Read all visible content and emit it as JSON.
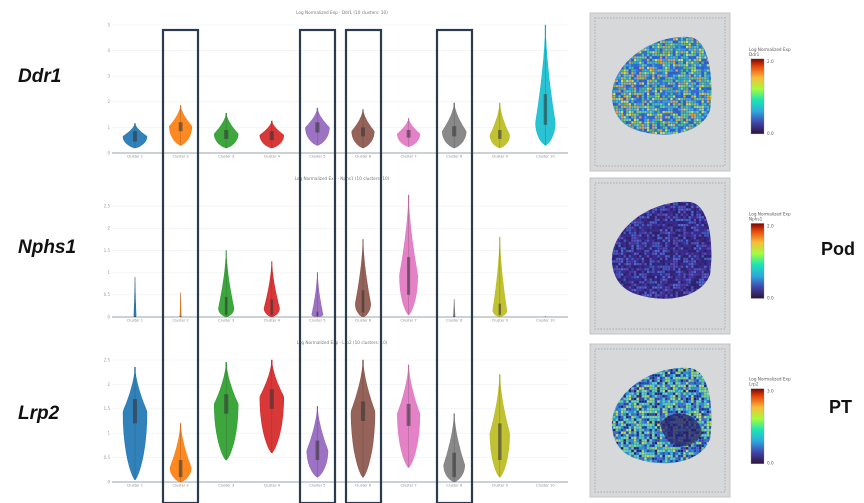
{
  "rows": [
    {
      "gene": "Ddr1",
      "cell_type": "",
      "panel_title": "Log Normalized Exp · Ddr1 (10 clusters: 10)",
      "legend_title": "Log Normalized Exp\nDdr1",
      "legend_max": "2.0",
      "legend_min": "0.0"
    },
    {
      "gene": "Nphs1",
      "cell_type": "Pod",
      "panel_title": "Log Normalized Exp · Nphs1 (10 clusters: 10)",
      "legend_title": "Log Normalized Exp\nNphs1",
      "legend_max": "2.0",
      "legend_min": "0.0"
    },
    {
      "gene": "Lrp2",
      "cell_type": "PT",
      "panel_title": "Log Normalized Exp · Lrp2 (10 clusters: 10)",
      "legend_title": "Log Normalized Exp\nLrp2",
      "legend_max": "3.0",
      "legend_min": "0.0"
    }
  ],
  "chart_data": [
    {
      "type": "violin",
      "gene": "Ddr1",
      "categories": [
        "Cluster 1",
        "Cluster 2",
        "Cluster 3",
        "Cluster 4",
        "Cluster 5",
        "Cluster 6",
        "Cluster 7",
        "Cluster 8",
        "Cluster 9",
        "Cluster 10"
      ],
      "y_ticks": [
        "0",
        "1",
        "2",
        "3",
        "4",
        "5"
      ],
      "ylim": [
        0,
        5
      ],
      "colors": [
        "#1f77b4",
        "#ff7f0e",
        "#2ca02c",
        "#d62728",
        "#9467bd",
        "#8c564b",
        "#e377c2",
        "#7f7f7f",
        "#bcbd22",
        "#17becf"
      ],
      "series": [
        {
          "min": 0.2,
          "q1": 0.45,
          "median": 0.65,
          "q3": 0.85,
          "max": 1.15,
          "peak": 0.65,
          "width": 0.85
        },
        {
          "min": 0.3,
          "q1": 0.85,
          "median": 1.05,
          "q3": 1.2,
          "max": 1.85,
          "peak": 1.05,
          "width": 0.8
        },
        {
          "min": 0.2,
          "q1": 0.55,
          "median": 0.75,
          "q3": 0.9,
          "max": 1.55,
          "peak": 0.75,
          "width": 0.85
        },
        {
          "min": 0.2,
          "q1": 0.5,
          "median": 0.7,
          "q3": 0.85,
          "max": 1.25,
          "peak": 0.7,
          "width": 0.85
        },
        {
          "min": 0.3,
          "q1": 0.8,
          "median": 1.0,
          "q3": 1.2,
          "max": 1.75,
          "peak": 1.0,
          "width": 0.85
        },
        {
          "min": 0.2,
          "q1": 0.65,
          "median": 0.85,
          "q3": 1.0,
          "max": 1.7,
          "peak": 0.85,
          "width": 0.8
        },
        {
          "min": 0.25,
          "q1": 0.6,
          "median": 0.75,
          "q3": 0.9,
          "max": 1.35,
          "peak": 0.75,
          "width": 0.8
        },
        {
          "min": 0.2,
          "q1": 0.65,
          "median": 0.85,
          "q3": 1.05,
          "max": 1.95,
          "peak": 0.85,
          "width": 0.85
        },
        {
          "min": 0.2,
          "q1": 0.55,
          "median": 0.75,
          "q3": 0.9,
          "max": 1.95,
          "peak": 0.7,
          "width": 0.7
        },
        {
          "min": 0.3,
          "q1": 1.1,
          "median": 1.7,
          "q3": 2.3,
          "max": 5.0,
          "peak": 1.2,
          "width": 0.7
        }
      ]
    },
    {
      "type": "violin",
      "gene": "Nphs1",
      "categories": [
        "Cluster 1",
        "Cluster 2",
        "Cluster 3",
        "Cluster 4",
        "Cluster 5",
        "Cluster 6",
        "Cluster 7",
        "Cluster 8",
        "Cluster 9",
        "Cluster 10"
      ],
      "y_ticks": [
        "0",
        "0.5",
        "1",
        "1.5",
        "2",
        "2.5"
      ],
      "ylim": [
        0,
        2.75
      ],
      "colors": [
        "#1f77b4",
        "#ff7f0e",
        "#2ca02c",
        "#d62728",
        "#9467bd",
        "#8c564b",
        "#e377c2",
        "#7f7f7f",
        "#bcbd22",
        "#17becf"
      ],
      "series": [
        {
          "min": 0,
          "q1": 0,
          "median": 0.01,
          "q3": 0.02,
          "max": 0.9,
          "peak": 0.02,
          "width": 0.08
        },
        {
          "min": 0,
          "q1": 0,
          "median": 0.01,
          "q3": 0.02,
          "max": 0.55,
          "peak": 0.02,
          "width": 0.05
        },
        {
          "min": 0,
          "q1": 0.05,
          "median": 0.2,
          "q3": 0.45,
          "max": 1.5,
          "peak": 0.2,
          "width": 0.55
        },
        {
          "min": 0,
          "q1": 0.05,
          "median": 0.2,
          "q3": 0.4,
          "max": 1.25,
          "peak": 0.2,
          "width": 0.55
        },
        {
          "min": 0,
          "q1": 0.02,
          "median": 0.05,
          "q3": 0.12,
          "max": 1.0,
          "peak": 0.05,
          "width": 0.4
        },
        {
          "min": 0,
          "q1": 0.1,
          "median": 0.3,
          "q3": 0.6,
          "max": 1.75,
          "peak": 0.3,
          "width": 0.55
        },
        {
          "min": 0.05,
          "q1": 0.5,
          "median": 0.9,
          "q3": 1.35,
          "max": 2.75,
          "peak": 0.95,
          "width": 0.65
        },
        {
          "min": 0,
          "q1": 0,
          "median": 0.01,
          "q3": 0.02,
          "max": 0.4,
          "peak": 0.02,
          "width": 0.06
        },
        {
          "min": 0,
          "q1": 0.05,
          "median": 0.15,
          "q3": 0.3,
          "max": 1.8,
          "peak": 0.15,
          "width": 0.5
        },
        {
          "min": 0,
          "q1": 0,
          "median": 0,
          "q3": 0,
          "max": 0.02,
          "peak": 0.01,
          "width": 0.02
        }
      ]
    },
    {
      "type": "violin",
      "gene": "Lrp2",
      "categories": [
        "Cluster 1",
        "Cluster 2",
        "Cluster 3",
        "Cluster 4",
        "Cluster 5",
        "Cluster 6",
        "Cluster 7",
        "Cluster 8",
        "Cluster 9",
        "Cluster 10"
      ],
      "y_ticks": [
        "0",
        "0.5",
        "1",
        "1.5",
        "2",
        "2.5"
      ],
      "ylim": [
        0,
        2.5
      ],
      "colors": [
        "#1f77b4",
        "#ff7f0e",
        "#2ca02c",
        "#d62728",
        "#9467bd",
        "#8c564b",
        "#e377c2",
        "#7f7f7f",
        "#bcbd22",
        "#17becf"
      ],
      "series": [
        {
          "min": 0.05,
          "q1": 1.2,
          "median": 1.45,
          "q3": 1.7,
          "max": 2.35,
          "peak": 1.45,
          "width": 0.85
        },
        {
          "min": 0,
          "q1": 0.1,
          "median": 0.25,
          "q3": 0.45,
          "max": 1.2,
          "peak": 0.3,
          "width": 0.75
        },
        {
          "min": 0.45,
          "q1": 1.4,
          "median": 1.6,
          "q3": 1.8,
          "max": 2.45,
          "peak": 1.6,
          "width": 0.85
        },
        {
          "min": 0.6,
          "q1": 1.5,
          "median": 1.7,
          "q3": 1.9,
          "max": 2.5,
          "peak": 1.75,
          "width": 0.85
        },
        {
          "min": 0.1,
          "q1": 0.45,
          "median": 0.65,
          "q3": 0.85,
          "max": 1.55,
          "peak": 0.65,
          "width": 0.75
        },
        {
          "min": 0.1,
          "q1": 1.25,
          "median": 1.45,
          "q3": 1.65,
          "max": 2.5,
          "peak": 1.45,
          "width": 0.85
        },
        {
          "min": 0.3,
          "q1": 1.15,
          "median": 1.4,
          "q3": 1.6,
          "max": 2.4,
          "peak": 1.4,
          "width": 0.8
        },
        {
          "min": 0,
          "q1": 0.1,
          "median": 0.3,
          "q3": 0.6,
          "max": 1.4,
          "peak": 0.35,
          "width": 0.75
        },
        {
          "min": 0.1,
          "q1": 0.45,
          "median": 0.8,
          "q3": 1.2,
          "max": 2.2,
          "peak": 1.0,
          "width": 0.7
        },
        {
          "min": 0,
          "q1": 0,
          "median": 0,
          "q3": 0,
          "max": 0.01,
          "peak": 0,
          "width": 0.01
        }
      ]
    }
  ]
}
